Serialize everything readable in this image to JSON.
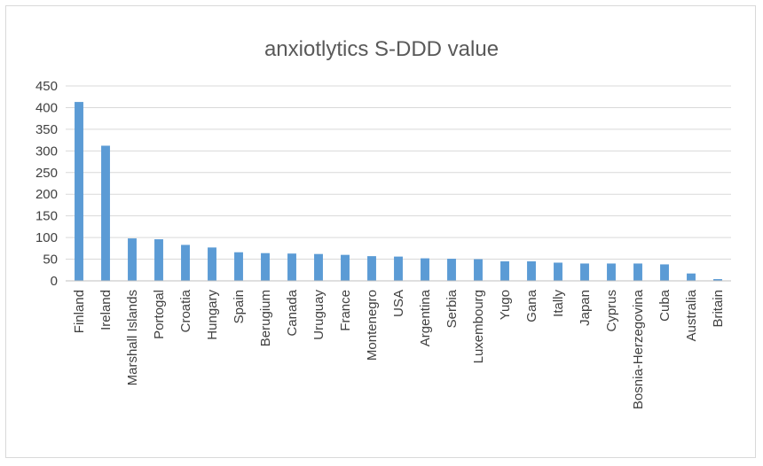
{
  "chart_data": {
    "type": "bar",
    "title": "anxiotlytics S-DDD value",
    "xlabel": "",
    "ylabel": "",
    "ylim": [
      0,
      450
    ],
    "yticks": [
      0,
      50,
      100,
      150,
      200,
      250,
      300,
      350,
      400,
      450
    ],
    "grid": true,
    "legend": "none",
    "colors": {
      "bar": "#5b9bd5",
      "grid": "#d9d9d9",
      "text": "#404040",
      "title": "#595959"
    },
    "categories": [
      "Finland",
      "Ireland",
      "Marshall Islands",
      "Portogal",
      "Croatia",
      "Hungary",
      "Spain",
      "Berugium",
      "Canada",
      "Uruguay",
      "France",
      "Montenegro",
      "USA",
      "Argentina",
      "Serbia",
      "Luxembourg",
      "Yugo",
      "Gana",
      "Itally",
      "Japan",
      "Cyprus",
      "Bosnia-Herzegovina",
      "Cuba",
      "Australia",
      "Britain"
    ],
    "values": [
      413,
      312,
      98,
      96,
      83,
      77,
      66,
      64,
      63,
      62,
      60,
      57,
      56,
      52,
      51,
      50,
      45,
      45,
      42,
      40,
      40,
      40,
      38,
      17,
      4
    ]
  }
}
